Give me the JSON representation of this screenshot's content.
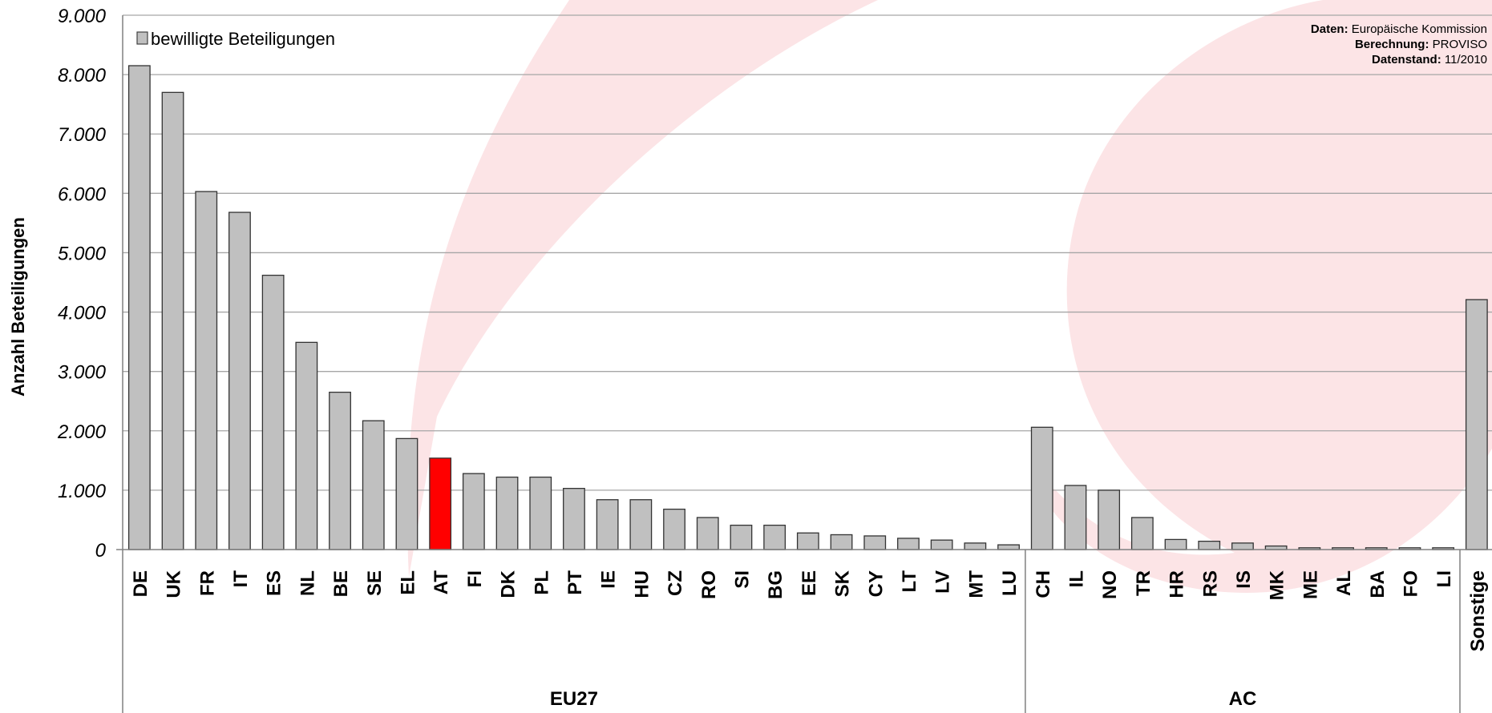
{
  "chart_data": {
    "type": "bar",
    "ylabel": "Anzahl Beteiligungen",
    "ylim": [
      0,
      9000
    ],
    "y_ticks": [
      "0",
      "1.000",
      "2.000",
      "3.000",
      "4.000",
      "5.000",
      "6.000",
      "7.000",
      "8.000",
      "9.000"
    ],
    "y_tick_values": [
      0,
      1000,
      2000,
      3000,
      4000,
      5000,
      6000,
      7000,
      8000,
      9000
    ],
    "grid": true,
    "legend": {
      "position": "top-left",
      "entries": [
        "bewilligte Beteiligungen"
      ]
    },
    "series": [
      {
        "name": "bewilligte Beteiligungen",
        "color": "#c0c0c0"
      }
    ],
    "highlight": {
      "category": "AT",
      "color": "#ff0000"
    },
    "categories": [
      "DE",
      "UK",
      "FR",
      "IT",
      "ES",
      "NL",
      "BE",
      "SE",
      "EL",
      "AT",
      "FI",
      "DK",
      "PL",
      "PT",
      "IE",
      "HU",
      "CZ",
      "RO",
      "SI",
      "BG",
      "EE",
      "SK",
      "CY",
      "LT",
      "LV",
      "MT",
      "LU",
      "CH",
      "IL",
      "NO",
      "TR",
      "HR",
      "RS",
      "IS",
      "MK",
      "ME",
      "AL",
      "BA",
      "FO",
      "LI",
      "Sonstige"
    ],
    "values": [
      8150,
      7700,
      6030,
      5680,
      4620,
      3490,
      2650,
      2170,
      1870,
      1540,
      1280,
      1220,
      1220,
      1030,
      840,
      840,
      680,
      540,
      410,
      410,
      280,
      250,
      230,
      190,
      160,
      110,
      80,
      2060,
      1080,
      1000,
      540,
      170,
      140,
      110,
      60,
      30,
      30,
      30,
      30,
      30,
      4210
    ],
    "groups": [
      {
        "label": "EU27",
        "count": 27
      },
      {
        "label": "AC",
        "count": 13
      },
      {
        "label": "",
        "count": 1
      }
    ],
    "source": [
      {
        "key": "Daten:",
        "value": "Europäische Kommission"
      },
      {
        "key": "Berechnung:",
        "value": "PROVISO"
      },
      {
        "key": "Datenstand:",
        "value": "11/2010"
      }
    ]
  }
}
